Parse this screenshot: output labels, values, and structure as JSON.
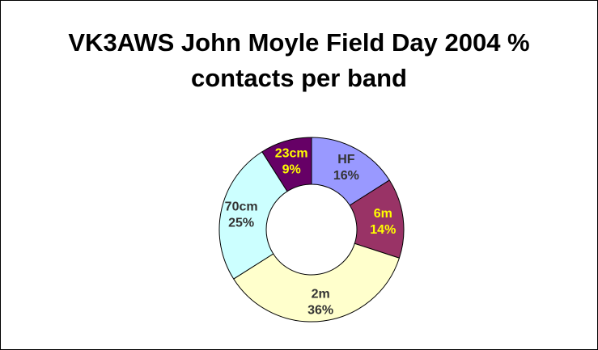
{
  "chart_data": {
    "type": "pie",
    "style": "donut",
    "title": "VK3AWS John Moyle Field Day 2004 % contacts per band",
    "title_lines": [
      "VK3AWS John Moyle Field Day 2004 %",
      "contacts per band"
    ],
    "slices": [
      {
        "label": "HF",
        "value": 16,
        "value_label": "16%",
        "color": "#9999ff",
        "text_color": "#333333"
      },
      {
        "label": "6m",
        "value": 14,
        "value_label": "14%",
        "color": "#993366",
        "text_color": "#ffff00"
      },
      {
        "label": "2m",
        "value": 36,
        "value_label": "36%",
        "color": "#ffffcc",
        "text_color": "#333333"
      },
      {
        "label": "70cm",
        "value": 25,
        "value_label": "25%",
        "color": "#ccffff",
        "text_color": "#333333"
      },
      {
        "label": "23cm",
        "value": 9,
        "value_label": "9%",
        "color": "#660066",
        "text_color": "#ffff00"
      }
    ],
    "legend": "none"
  }
}
